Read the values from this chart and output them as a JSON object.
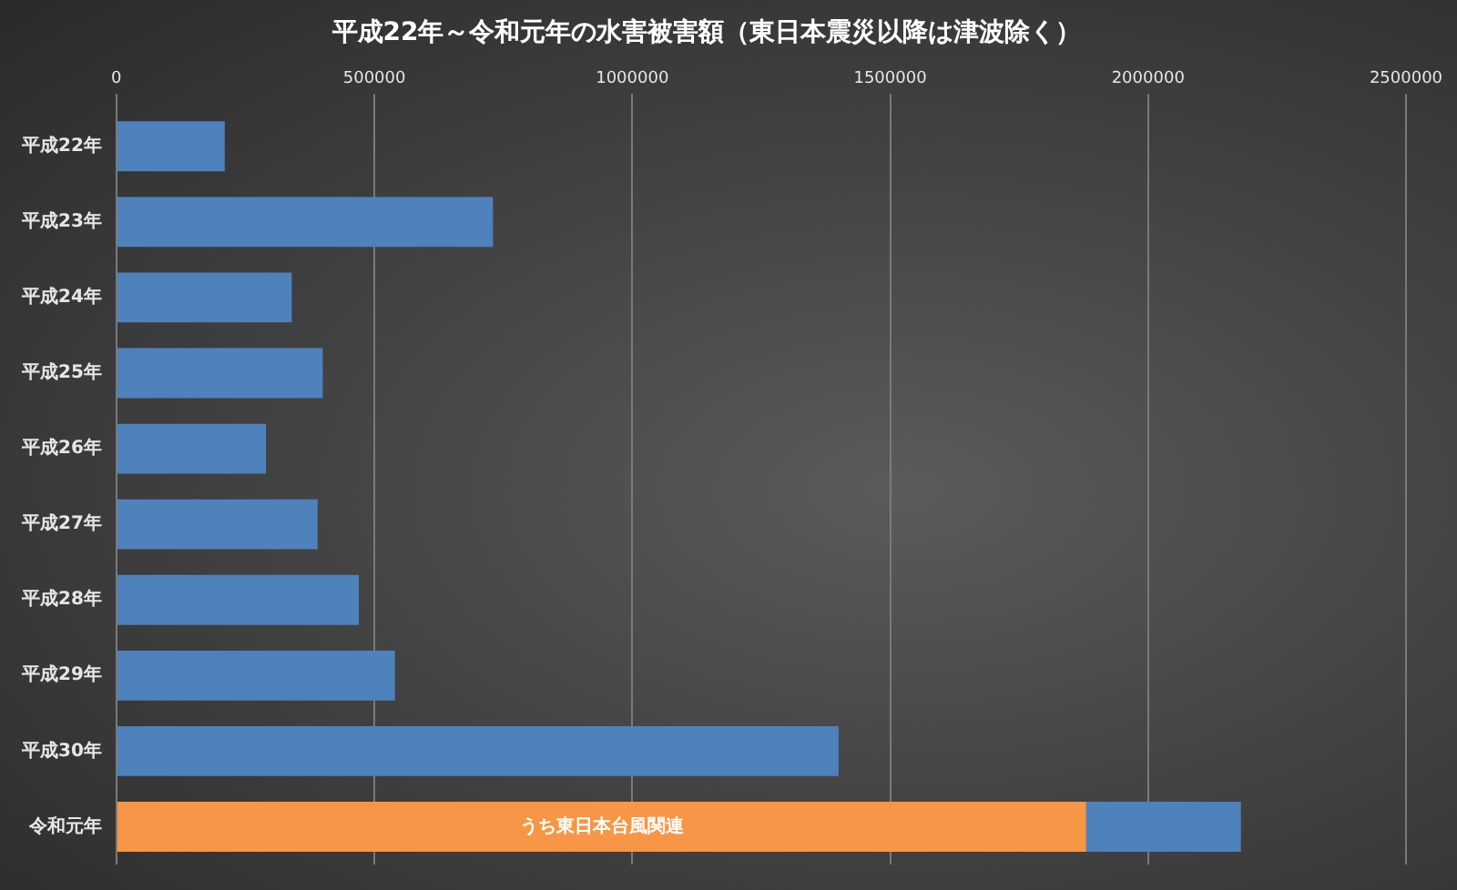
{
  "chart_data": {
    "type": "bar",
    "orientation": "horizontal",
    "stacked": true,
    "title": "平成22年～令和元年の水害被害額（東日本震災以降は津波除く）",
    "categories": [
      "平成22年",
      "平成23年",
      "平成24年",
      "平成25年",
      "平成26年",
      "平成27年",
      "平成28年",
      "平成29年",
      "平成30年",
      "令和元年"
    ],
    "series": [
      {
        "name": "うち東日本台風関連",
        "color": "#f79646",
        "values": [
          null,
          null,
          null,
          null,
          null,
          null,
          null,
          null,
          null,
          1880000
        ]
      },
      {
        "color": "#4f81bd",
        "values": [
          210000,
          730000,
          340000,
          400000,
          290000,
          390000,
          470000,
          540000,
          1400000,
          300000
        ]
      }
    ],
    "xlim": [
      0,
      2500000
    ],
    "xticks": [
      0,
      500000,
      1000000,
      1500000,
      2000000,
      2500000
    ],
    "grid": "x",
    "legend": false
  }
}
